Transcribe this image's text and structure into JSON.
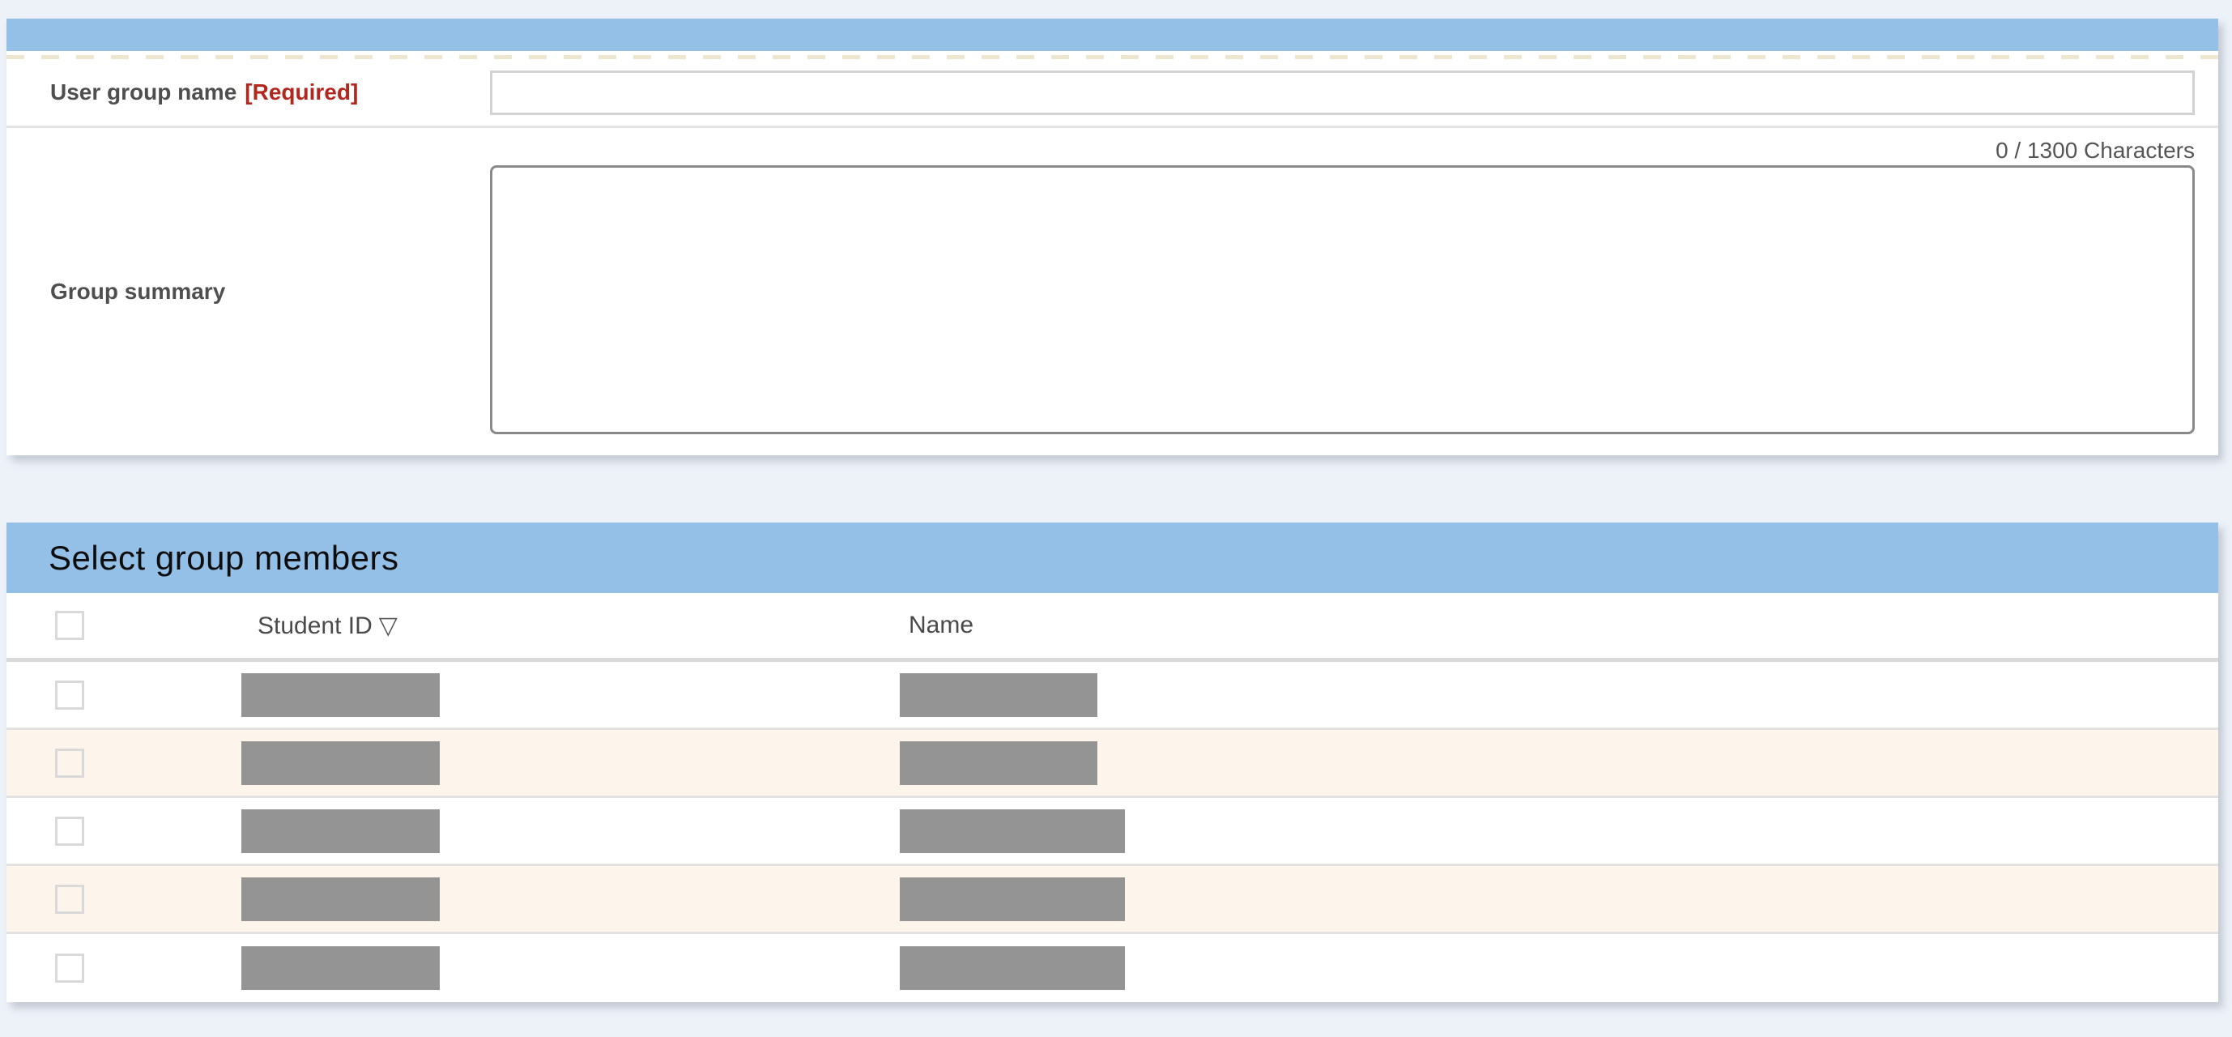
{
  "form_panel": {
    "header_title": "",
    "fields": [
      {
        "label": "User group name",
        "required_tag": "[Required]",
        "value": "",
        "placeholder": ""
      },
      {
        "label": "Group summary",
        "char_counter": "0 / 1300 Characters",
        "value": "",
        "placeholder": ""
      }
    ]
  },
  "members_panel": {
    "title": "Select group members",
    "table": {
      "columns": [
        {
          "label": "",
          "type": "checkbox"
        },
        {
          "label": "Student ID",
          "sort_indicator": "▽"
        },
        {
          "label": "Name"
        }
      ],
      "rows": [
        {
          "checked": false,
          "student_id_redacted": true,
          "name_redacted": true,
          "id_box_w": 245,
          "name_box_w": 244
        },
        {
          "checked": false,
          "student_id_redacted": true,
          "name_redacted": true,
          "id_box_w": 245,
          "name_box_w": 244
        },
        {
          "checked": false,
          "student_id_redacted": true,
          "name_redacted": true,
          "id_box_w": 245,
          "name_box_w": 278
        },
        {
          "checked": false,
          "student_id_redacted": true,
          "name_redacted": true,
          "id_box_w": 245,
          "name_box_w": 278
        },
        {
          "checked": false,
          "student_id_redacted": true,
          "name_redacted": true,
          "id_box_w": 245,
          "name_box_w": 278
        }
      ]
    }
  },
  "colors": {
    "header_bar": "#94c0e8",
    "required_red": "#b3281e",
    "row_alt": "#fdf5eb",
    "redaction_gray": "#949494",
    "page_background": "#edf1f8"
  }
}
